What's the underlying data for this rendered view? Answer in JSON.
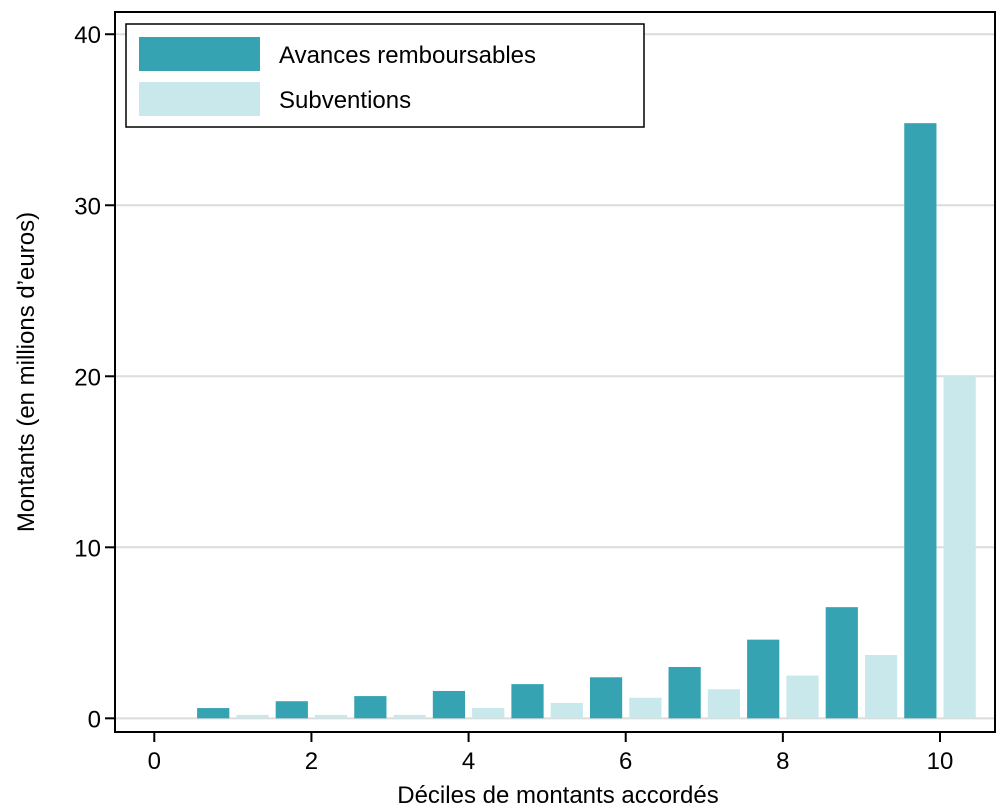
{
  "chart_data": {
    "type": "bar",
    "xlabel": "Déciles de montants accordés",
    "ylabel": "Montants (en millions d’euros)",
    "xlim": [
      -0.5,
      10.7
    ],
    "ylim": [
      -0.8,
      41.3
    ],
    "xticks": [
      0,
      2,
      4,
      6,
      8,
      10
    ],
    "yticks": [
      0,
      10,
      20,
      30,
      40
    ],
    "x": [
      1,
      2,
      3,
      4,
      5,
      6,
      7,
      8,
      9,
      10
    ],
    "grid": true,
    "legend_position": "top-left",
    "series": [
      {
        "name": "Avances remboursables",
        "color": "#35a3b2",
        "offset": -0.25,
        "values": [
          0.6,
          1.0,
          1.3,
          1.6,
          2.0,
          2.4,
          3.0,
          4.6,
          6.5,
          34.8
        ]
      },
      {
        "name": "Subventions",
        "color": "#c8e8eb",
        "offset": 0.25,
        "values": [
          0.2,
          0.2,
          0.2,
          0.6,
          0.9,
          1.2,
          1.7,
          2.5,
          3.7,
          20.0
        ]
      }
    ]
  }
}
